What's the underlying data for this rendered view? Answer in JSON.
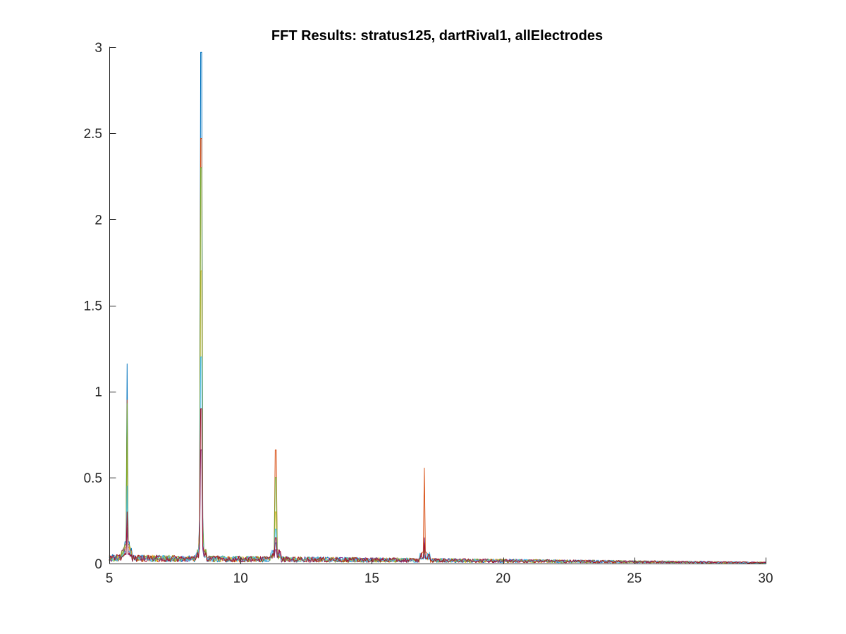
{
  "chart_data": {
    "type": "line",
    "title": "FFT Results: stratus125, dartRival1, allElectrodes",
    "xlabel": "",
    "ylabel": "",
    "xlim": [
      5,
      30
    ],
    "ylim": [
      0,
      3
    ],
    "grid": false,
    "legend": "none",
    "x_ticks": [
      5,
      10,
      15,
      20,
      25,
      30
    ],
    "x_tick_labels": [
      "5",
      "10",
      "15",
      "20",
      "25",
      "30"
    ],
    "y_ticks": [
      0,
      0.5,
      1,
      1.5,
      2,
      2.5,
      3
    ],
    "y_tick_labels": [
      "0",
      "0.5",
      "1",
      "1.5",
      "2",
      "2.5",
      "3"
    ],
    "series_colors": [
      "#0072BD",
      "#D95319",
      "#EDB120",
      "#7E2F8E",
      "#77AC30",
      "#4DBEEE",
      "#A2142F"
    ],
    "baseline": {
      "x_start": 5,
      "x_end": 30,
      "level_start": 0.035,
      "level_end": 0.006
    },
    "series": [
      {
        "peaks": [
          [
            5.68,
            1.16
          ],
          [
            8.5,
            2.97
          ],
          [
            11.33,
            0.12
          ],
          [
            17.0,
            0.04
          ]
        ]
      },
      {
        "peaks": [
          [
            5.68,
            0.95
          ],
          [
            8.5,
            2.47
          ],
          [
            11.33,
            0.66
          ],
          [
            17.0,
            0.555
          ]
        ]
      },
      {
        "peaks": [
          [
            5.68,
            0.75
          ],
          [
            8.5,
            1.7
          ],
          [
            11.33,
            0.3
          ],
          [
            17.0,
            0.1
          ]
        ]
      },
      {
        "peaks": [
          [
            5.68,
            0.21
          ],
          [
            8.5,
            0.66
          ],
          [
            11.33,
            0.08
          ],
          [
            17.0,
            0.15
          ]
        ]
      },
      {
        "peaks": [
          [
            5.68,
            0.93
          ],
          [
            8.5,
            2.3
          ],
          [
            11.33,
            0.5
          ],
          [
            17.0,
            0.08
          ]
        ]
      },
      {
        "peaks": [
          [
            5.68,
            0.45
          ],
          [
            8.5,
            1.2
          ],
          [
            11.33,
            0.2
          ],
          [
            17.0,
            0.05
          ]
        ]
      },
      {
        "peaks": [
          [
            5.68,
            0.3
          ],
          [
            8.5,
            0.9
          ],
          [
            11.33,
            0.15
          ],
          [
            17.0,
            0.12
          ]
        ]
      }
    ]
  }
}
